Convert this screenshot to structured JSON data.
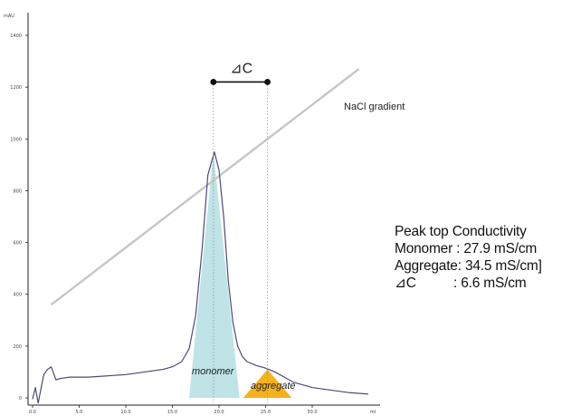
{
  "chart_data": {
    "type": "line",
    "y_unit": "mAU",
    "y_ticks": [
      "0",
      "200",
      "400",
      "600",
      "800",
      "1000",
      "1200",
      "1400"
    ],
    "x_ticks": [
      "0.0",
      "5.0",
      "10.0",
      "15.0",
      "20.0",
      "25.0",
      "30.0",
      "ml"
    ],
    "series": [
      {
        "name": "chromatogram",
        "x": [
          0.0,
          0.3,
          0.6,
          1.2,
          1.6,
          2.0,
          2.5,
          3.0,
          4.0,
          6.0,
          8.0,
          10.0,
          12.0,
          14.0,
          15.0,
          16.0,
          16.8,
          17.5,
          18.2,
          18.8,
          19.5,
          20.0,
          20.5,
          21.0,
          21.5,
          22.0,
          22.5,
          23.0,
          24.0,
          25.0,
          26.0,
          27.0,
          28.0,
          30.0,
          32.0,
          34.0,
          36.0
        ],
        "y": [
          -5,
          40,
          -20,
          90,
          110,
          120,
          70,
          75,
          80,
          80,
          85,
          90,
          100,
          110,
          120,
          140,
          190,
          320,
          580,
          860,
          950,
          880,
          700,
          450,
          290,
          200,
          160,
          140,
          125,
          115,
          100,
          80,
          60,
          40,
          30,
          20,
          15
        ]
      },
      {
        "name": "NaCl gradient",
        "x": [
          2.0,
          35.0
        ],
        "y": [
          360,
          1270
        ]
      }
    ],
    "xlim": [
      -0.5,
      37.5
    ],
    "ylim": [
      -30,
      1480
    ],
    "annotations": {
      "delta_c_label": "⊿C",
      "gradient_label": "NaCl gradient",
      "monomer_label": "monomer",
      "aggregate_label": "aggregate",
      "monomer_peak_x": 19.4,
      "aggregate_peak_x": 25.2,
      "bracket_y": 1220
    },
    "colors": {
      "chromatogram": "#4b4b7a",
      "gradient": "#c6c6c6",
      "monomer_fill": "#bfe3e6",
      "aggregate_fill": "#f3b21e",
      "bracket": "#111111",
      "guide": "#9a9a9a"
    }
  },
  "panel": {
    "title": "Peak top Conductivity",
    "monomer": "Monomer : 27.9 mS/cm",
    "aggregate": "Aggregate: 34.5 mS/cm]",
    "delta_label": "⊿C",
    "delta_value": ": 6.6 mS/cm"
  }
}
